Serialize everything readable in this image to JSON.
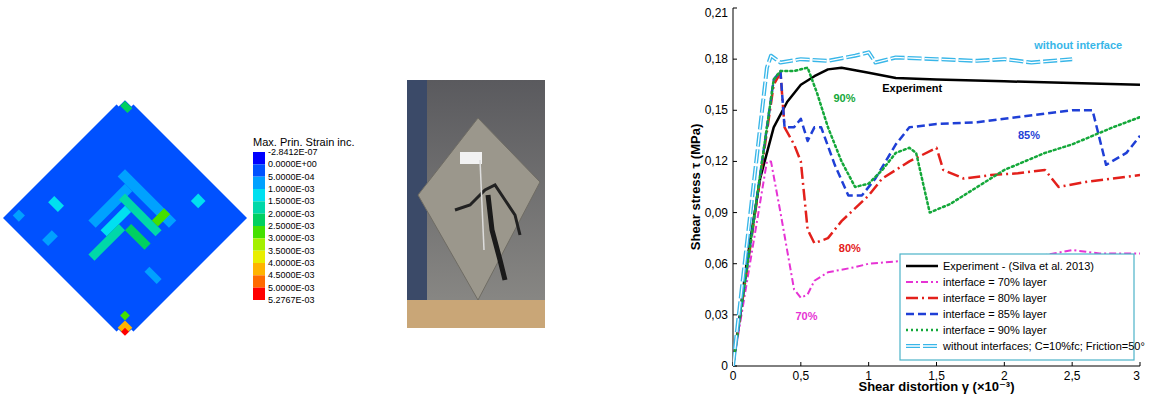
{
  "chart_data": {
    "type": "line",
    "x_label": "Shear distortion γ (×10⁻³)",
    "y_label": "Shear stress τ (MPa)",
    "xlim": [
      0,
      3
    ],
    "ylim": [
      0,
      0.21
    ],
    "xticks": [
      0,
      {
        "value": 0.5,
        "label": "0,5"
      },
      1,
      {
        "value": 1.5,
        "label": "1,5"
      },
      2,
      {
        "value": 2.5,
        "label": "2,5"
      },
      3
    ],
    "yticks": [
      0,
      {
        "value": 0.03,
        "label": "0,03"
      },
      {
        "value": 0.06,
        "label": "0,06"
      },
      {
        "value": 0.09,
        "label": "0,09"
      },
      {
        "value": 0.12,
        "label": "0,12"
      },
      {
        "value": 0.15,
        "label": "0,15"
      },
      {
        "value": 0.18,
        "label": "0,18"
      },
      {
        "value": 0.21,
        "label": "0,21"
      }
    ],
    "grid": false,
    "legend": "lower right",
    "series": [
      {
        "name": "Experiment - (Silva et al. 2013)",
        "color": "#000000",
        "line_style": "solid",
        "x": [
          0,
          0.1,
          0.2,
          0.3,
          0.4,
          0.5,
          0.6,
          0.7,
          0.8,
          1.0,
          1.2,
          1.5,
          2.0,
          2.5,
          3.0
        ],
        "values": [
          0,
          0.06,
          0.11,
          0.14,
          0.155,
          0.165,
          0.17,
          0.174,
          0.175,
          0.172,
          0.169,
          0.168,
          0.167,
          0.166,
          0.165
        ]
      },
      {
        "name": "interface = 70% layer",
        "color": "#e633d4",
        "line_style": "dash-dot",
        "x": [
          0,
          0.25,
          0.28,
          0.35,
          0.45,
          0.5,
          0.55,
          0.6,
          0.7,
          0.9,
          1.0,
          1.3,
          1.5,
          1.8,
          2.0,
          2.3,
          2.5,
          2.7,
          3.0
        ],
        "values": [
          0,
          0.12,
          0.12,
          0.09,
          0.045,
          0.04,
          0.042,
          0.05,
          0.055,
          0.058,
          0.06,
          0.062,
          0.063,
          0.06,
          0.063,
          0.065,
          0.068,
          0.066,
          0.066
        ]
      },
      {
        "name": "interface = 80% layer",
        "color": "#e3201b",
        "line_style": "long-dash-dot",
        "x": [
          0,
          0.3,
          0.35,
          0.38,
          0.45,
          0.5,
          0.55,
          0.6,
          0.7,
          0.8,
          1.0,
          1.1,
          1.2,
          1.3,
          1.5,
          1.55,
          1.7,
          1.9,
          2.1,
          2.3,
          2.4,
          2.6,
          2.8,
          3.0
        ],
        "values": [
          0,
          0.165,
          0.172,
          0.14,
          0.13,
          0.12,
          0.08,
          0.072,
          0.075,
          0.085,
          0.1,
          0.11,
          0.115,
          0.12,
          0.128,
          0.115,
          0.11,
          0.112,
          0.113,
          0.115,
          0.105,
          0.108,
          0.11,
          0.112
        ]
      },
      {
        "name": "interface = 85% layer",
        "color": "#1f3fd6",
        "line_style": "dashed",
        "x": [
          0,
          0.3,
          0.35,
          0.38,
          0.45,
          0.5,
          0.55,
          0.6,
          0.65,
          0.75,
          0.85,
          0.95,
          1.05,
          1.2,
          1.3,
          1.5,
          1.8,
          2.0,
          2.3,
          2.5,
          2.65,
          2.75,
          2.9,
          3.0
        ],
        "values": [
          0,
          0.168,
          0.173,
          0.14,
          0.14,
          0.145,
          0.132,
          0.14,
          0.14,
          0.118,
          0.1,
          0.1,
          0.11,
          0.13,
          0.14,
          0.142,
          0.143,
          0.145,
          0.148,
          0.15,
          0.15,
          0.118,
          0.125,
          0.135
        ]
      },
      {
        "name": "interface = 90% layer",
        "color": "#14a83a",
        "line_style": "dotted",
        "x": [
          0,
          0.3,
          0.35,
          0.45,
          0.55,
          0.62,
          0.7,
          0.8,
          0.9,
          1.0,
          1.1,
          1.2,
          1.3,
          1.35,
          1.45,
          1.6,
          1.8,
          2.0,
          2.3,
          2.5,
          2.8,
          3.0
        ],
        "values": [
          0,
          0.168,
          0.173,
          0.173,
          0.175,
          0.16,
          0.14,
          0.12,
          0.105,
          0.107,
          0.115,
          0.125,
          0.128,
          0.125,
          0.09,
          0.095,
          0.105,
          0.115,
          0.125,
          0.13,
          0.14,
          0.146
        ]
      },
      {
        "name": "without interfaces; C=10%fc; Friction=50°",
        "color": "#38b6e8",
        "line_style": "double-dashed",
        "x": [
          0,
          0.25,
          0.28,
          0.35,
          0.5,
          0.7,
          0.9,
          1.0,
          1.05,
          1.2,
          1.5,
          1.8,
          2.0,
          2.2,
          2.5
        ],
        "values": [
          0,
          0.175,
          0.182,
          0.178,
          0.18,
          0.179,
          0.182,
          0.184,
          0.178,
          0.181,
          0.18,
          0.179,
          0.18,
          0.178,
          0.18
        ]
      }
    ],
    "annotations": [
      {
        "text": "without interface",
        "x": 2.22,
        "y": 0.186,
        "color": "#38b6e8"
      },
      {
        "text": "Experiment",
        "x": 1.1,
        "y": 0.161,
        "color": "#000000"
      },
      {
        "text": "90%",
        "x": 0.74,
        "y": 0.155,
        "color": "#14a83a"
      },
      {
        "text": "85%",
        "x": 2.1,
        "y": 0.133,
        "color": "#1f3fd6"
      },
      {
        "text": "80%",
        "x": 0.78,
        "y": 0.067,
        "color": "#e3201b"
      },
      {
        "text": "70%",
        "x": 0.46,
        "y": 0.027,
        "color": "#e633d4"
      }
    ]
  },
  "contour_plot": {
    "legend_title": "Max. Prin. Strain inc.",
    "levels": [
      {
        "value": -2.8412e-07,
        "label": "-2.8412E-07"
      },
      {
        "value": 0,
        "label": "0.0000E+00"
      },
      {
        "value": 0.0005,
        "label": "5.0000E-04"
      },
      {
        "value": 0.001,
        "label": "1.0000E-03"
      },
      {
        "value": 0.0015,
        "label": "1.5000E-03"
      },
      {
        "value": 0.002,
        "label": "2.0000E-03"
      },
      {
        "value": 0.0025,
        "label": "2.5000E-03"
      },
      {
        "value": 0.003,
        "label": "3.0000E-03"
      },
      {
        "value": 0.0035,
        "label": "3.5000E-03"
      },
      {
        "value": 0.004,
        "label": "4.0000E-03"
      },
      {
        "value": 0.0045,
        "label": "4.5000E-03"
      },
      {
        "value": 0.005,
        "label": "5.0000E-03"
      },
      {
        "value": 0.0052767,
        "label": "5.2767E-03"
      }
    ],
    "colors": [
      "#0000ff",
      "#0051ff",
      "#00a1ff",
      "#00e0f0",
      "#00d8a8",
      "#00d060",
      "#44e000",
      "#a4f000",
      "#e8ee00",
      "#ffb400",
      "#ff6a00",
      "#ff0000"
    ]
  }
}
